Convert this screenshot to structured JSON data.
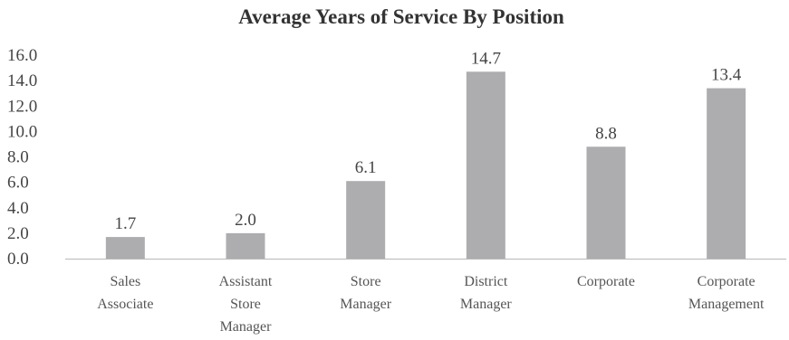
{
  "chart_data": {
    "type": "bar",
    "title": "Average Years of Service By Position",
    "xlabel": "",
    "ylabel": "",
    "categories": [
      [
        "Sales",
        "Associate"
      ],
      [
        "Assistant",
        "Store",
        "Manager"
      ],
      [
        "Store",
        "Manager"
      ],
      [
        "District",
        "Manager"
      ],
      [
        "Corporate"
      ],
      [
        "Corporate",
        "Management"
      ]
    ],
    "values": [
      1.7,
      2.0,
      6.1,
      14.7,
      8.8,
      13.4
    ],
    "data_labels": [
      "1.7",
      "2.0",
      "6.1",
      "14.7",
      "8.8",
      "13.4"
    ],
    "y_ticks": [
      "0.0",
      "2.0",
      "4.0",
      "6.0",
      "8.0",
      "10.0",
      "12.0",
      "14.0",
      "16.0"
    ],
    "ylim": [
      0,
      16
    ],
    "grid": false,
    "legend": "none",
    "bar_color": "#adadaf"
  }
}
